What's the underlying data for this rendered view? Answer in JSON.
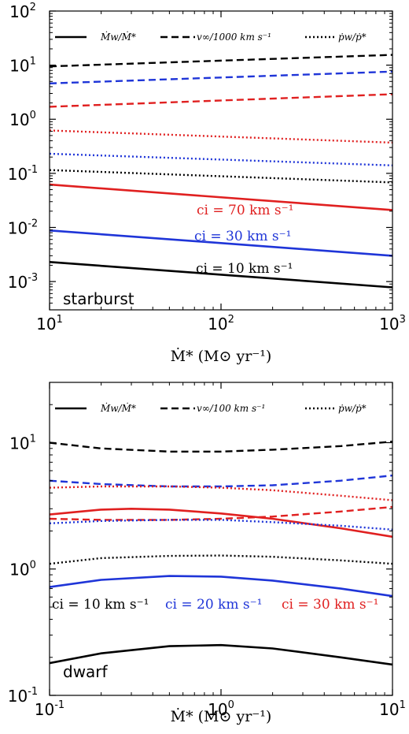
{
  "colors": {
    "black": "#000000",
    "blue": "#1f35d8",
    "red": "#e02020"
  },
  "chart_data": [
    {
      "type": "line",
      "panel_label": "starburst",
      "xscale": "log",
      "yscale": "log",
      "xlim": [
        10,
        1000
      ],
      "ylim": [
        0.0003,
        100
      ],
      "x_ticks": [
        {
          "base": "10",
          "exp": "1"
        },
        {
          "base": "10",
          "exp": "2"
        },
        {
          "base": "10",
          "exp": "3"
        }
      ],
      "y_ticks": [
        {
          "base": "10",
          "exp": "-3"
        },
        {
          "base": "10",
          "exp": "-2"
        },
        {
          "base": "10",
          "exp": "-1"
        },
        {
          "base": "10",
          "exp": "0"
        },
        {
          "base": "10",
          "exp": "1"
        },
        {
          "base": "10",
          "exp": "2"
        }
      ],
      "xlabel": "Ṁ* (M⊙ yr⁻¹)",
      "legend": [
        "Ṁw/Ṁ*",
        "v∞/1000 km s⁻¹",
        "ṗw/ṗ*"
      ],
      "annotations": [
        "ci = 70 km s⁻¹",
        "ci = 30 km s⁻¹",
        "ci = 10 km s⁻¹"
      ],
      "series": [
        {
          "group": "ci = 10 km s⁻¹",
          "quantity": "Ṁw/Ṁ*",
          "color": "black",
          "style": "solid",
          "x": [
            10,
            1000
          ],
          "y": [
            0.0023,
            0.00078
          ]
        },
        {
          "group": "ci = 30 km s⁻¹",
          "quantity": "Ṁw/Ṁ*",
          "color": "blue",
          "style": "solid",
          "x": [
            10,
            1000
          ],
          "y": [
            0.0088,
            0.003
          ]
        },
        {
          "group": "ci = 70 km s⁻¹",
          "quantity": "Ṁw/Ṁ*",
          "color": "red",
          "style": "solid",
          "x": [
            10,
            1000
          ],
          "y": [
            0.062,
            0.021
          ]
        },
        {
          "group": "ci = 10 km s⁻¹",
          "quantity": "v∞/1000 km s⁻¹",
          "color": "black",
          "style": "dashed",
          "x": [
            10,
            1000
          ],
          "y": [
            9.5,
            15.5
          ]
        },
        {
          "group": "ci = 30 km s⁻¹",
          "quantity": "v∞/1000 km s⁻¹",
          "color": "blue",
          "style": "dashed",
          "x": [
            10,
            1000
          ],
          "y": [
            4.6,
            7.6
          ]
        },
        {
          "group": "ci = 70 km s⁻¹",
          "quantity": "v∞/1000 km s⁻¹",
          "color": "red",
          "style": "dashed",
          "x": [
            10,
            1000
          ],
          "y": [
            1.7,
            2.9
          ]
        },
        {
          "group": "ci = 70 km s⁻¹",
          "quantity": "ṗw/ṗ*",
          "color": "red",
          "style": "dotted",
          "x": [
            10,
            1000
          ],
          "y": [
            0.62,
            0.37
          ]
        },
        {
          "group": "ci = 30 km s⁻¹",
          "quantity": "ṗw/ṗ*",
          "color": "blue",
          "style": "dotted",
          "x": [
            10,
            1000
          ],
          "y": [
            0.23,
            0.14
          ]
        },
        {
          "group": "ci = 10 km s⁻¹",
          "quantity": "ṗw/ṗ*",
          "color": "black",
          "style": "dotted",
          "x": [
            10,
            1000
          ],
          "y": [
            0.115,
            0.068
          ]
        }
      ]
    },
    {
      "type": "line",
      "panel_label": "dwarf",
      "xscale": "log",
      "yscale": "log",
      "xlim": [
        0.1,
        10
      ],
      "ylim": [
        0.1,
        30
      ],
      "x_ticks": [
        {
          "base": "10",
          "exp": "-1"
        },
        {
          "base": "10",
          "exp": "0"
        },
        {
          "base": "10",
          "exp": "1"
        }
      ],
      "y_ticks": [
        {
          "base": "10",
          "exp": "-1"
        },
        {
          "base": "10",
          "exp": "0"
        },
        {
          "base": "10",
          "exp": "1"
        }
      ],
      "xlabel": "Ṁ* (M⊙ yr⁻¹)",
      "legend": [
        "Ṁw/Ṁ*",
        "v∞/100 km s⁻¹",
        "ṗw/ṗ*"
      ],
      "annotations": [
        "ci = 10 km s⁻¹",
        "ci = 20 km s⁻¹",
        "ci = 30 km s⁻¹"
      ],
      "series": [
        {
          "group": "ci = 10 km s⁻¹",
          "quantity": "Ṁw/Ṁ*",
          "color": "black",
          "style": "solid",
          "x": [
            0.1,
            0.2,
            0.5,
            1,
            2,
            5,
            10
          ],
          "y": [
            0.18,
            0.215,
            0.245,
            0.25,
            0.235,
            0.2,
            0.175
          ]
        },
        {
          "group": "ci = 20 km s⁻¹",
          "quantity": "Ṁw/Ṁ*",
          "color": "blue",
          "style": "solid",
          "x": [
            0.1,
            0.2,
            0.5,
            1,
            2,
            5,
            10
          ],
          "y": [
            0.72,
            0.82,
            0.88,
            0.87,
            0.81,
            0.7,
            0.61
          ]
        },
        {
          "group": "ci = 30 km s⁻¹",
          "quantity": "Ṁw/Ṁ*",
          "color": "red",
          "style": "solid",
          "x": [
            0.1,
            0.2,
            0.3,
            0.5,
            1,
            2,
            5,
            10
          ],
          "y": [
            2.7,
            2.95,
            3.0,
            2.95,
            2.75,
            2.5,
            2.1,
            1.8
          ]
        },
        {
          "group": "ci = 10 km s⁻¹",
          "quantity": "v∞/100 km s⁻¹",
          "color": "black",
          "style": "dashed",
          "x": [
            0.1,
            0.2,
            0.5,
            1,
            2,
            5,
            10
          ],
          "y": [
            10.0,
            9.0,
            8.5,
            8.5,
            8.8,
            9.4,
            10.2
          ]
        },
        {
          "group": "ci = 20 km s⁻¹",
          "quantity": "v∞/100 km s⁻¹",
          "color": "blue",
          "style": "dashed",
          "x": [
            0.1,
            0.2,
            0.5,
            1,
            2,
            5,
            10
          ],
          "y": [
            5.0,
            4.7,
            4.5,
            4.5,
            4.6,
            5.0,
            5.5
          ]
        },
        {
          "group": "ci = 30 km s⁻¹",
          "quantity": "v∞/100 km s⁻¹",
          "color": "red",
          "style": "dashed",
          "x": [
            0.1,
            0.2,
            0.5,
            1,
            2,
            5,
            10
          ],
          "y": [
            2.5,
            2.45,
            2.45,
            2.5,
            2.6,
            2.85,
            3.1
          ]
        },
        {
          "group": "ci = 30 km s⁻¹",
          "quantity": "ṗw/ṗ*",
          "color": "red",
          "style": "dotted",
          "x": [
            0.1,
            0.2,
            0.5,
            1,
            2,
            5,
            10
          ],
          "y": [
            4.4,
            4.5,
            4.5,
            4.4,
            4.2,
            3.8,
            3.5
          ]
        },
        {
          "group": "ci = 20 km s⁻¹",
          "quantity": "ṗw/ṗ*",
          "color": "blue",
          "style": "dotted",
          "x": [
            0.1,
            0.2,
            0.5,
            1,
            2,
            5,
            10
          ],
          "y": [
            2.3,
            2.4,
            2.45,
            2.45,
            2.35,
            2.2,
            2.05
          ]
        },
        {
          "group": "ci = 10 km s⁻¹",
          "quantity": "ṗw/ṗ*",
          "color": "black",
          "style": "dotted",
          "x": [
            0.1,
            0.2,
            0.5,
            1,
            2,
            5,
            10
          ],
          "y": [
            1.1,
            1.22,
            1.27,
            1.28,
            1.25,
            1.17,
            1.1
          ]
        }
      ]
    }
  ]
}
